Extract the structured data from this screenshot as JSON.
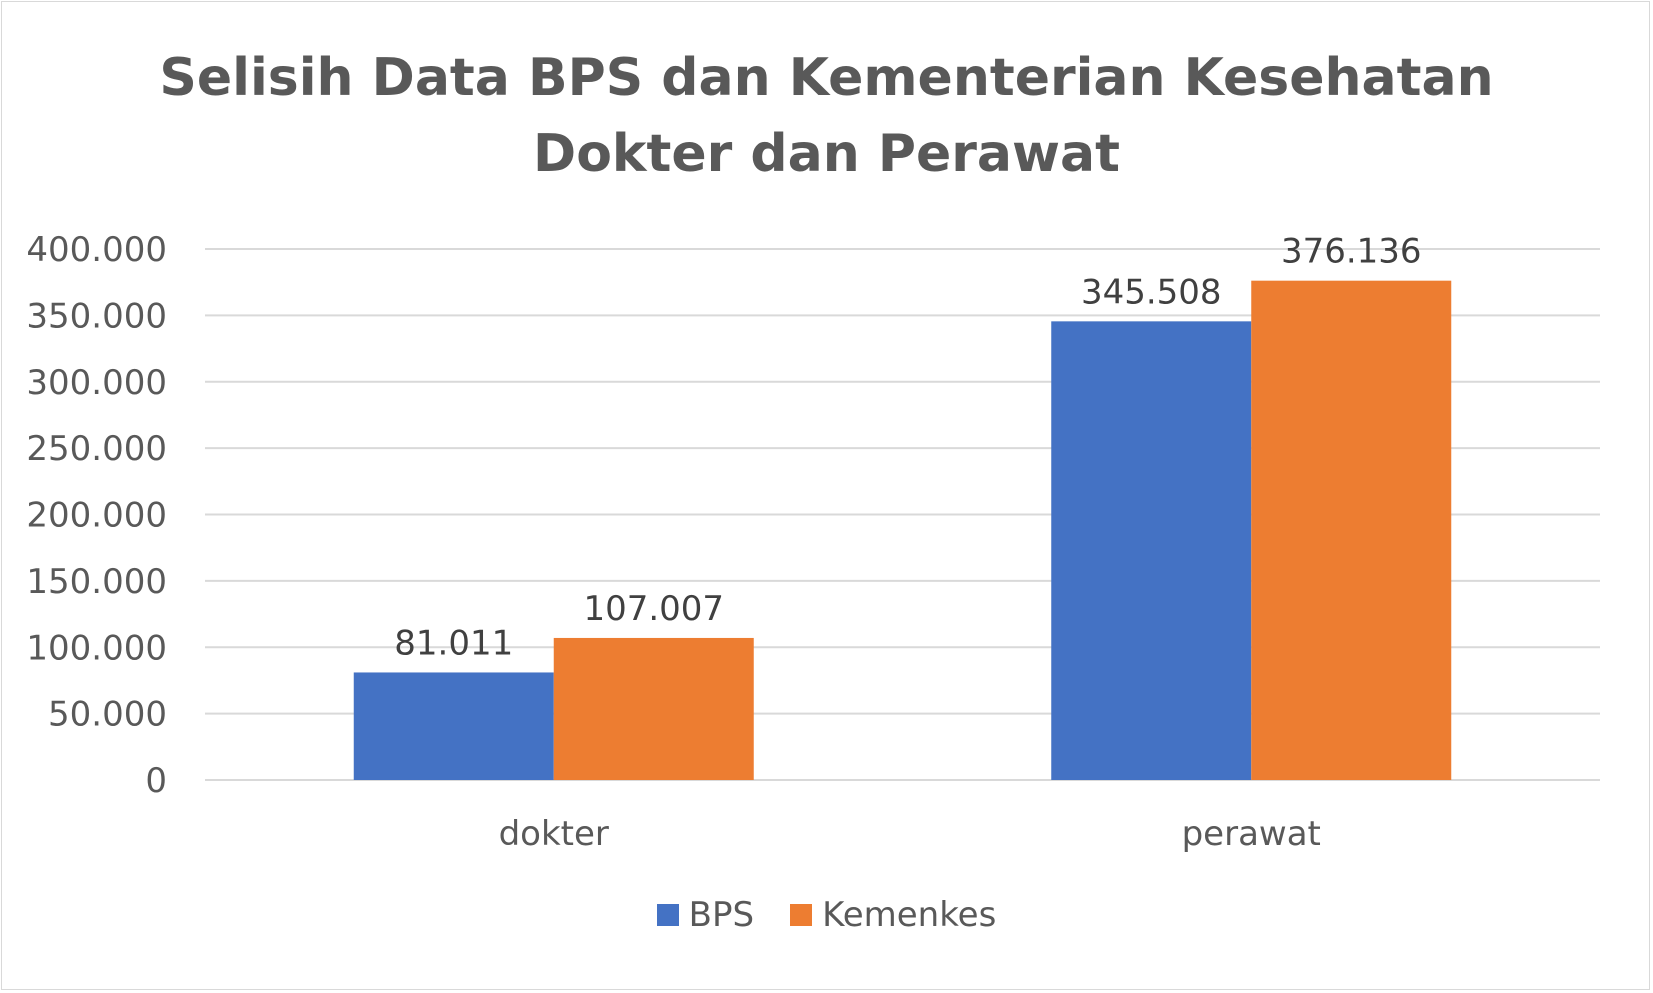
{
  "chart_data": {
    "type": "bar",
    "title_lines": [
      "Selisih Data BPS dan Kementerian Kesehatan",
      "Dokter dan Perawat"
    ],
    "categories": [
      "dokter",
      "perawat"
    ],
    "series": [
      {
        "name": "BPS",
        "color": "#4472c4",
        "values": [
          81011,
          345508
        ],
        "labels": [
          "81.011",
          "345.508"
        ]
      },
      {
        "name": "Kemenkes",
        "color": "#ed7d31",
        "values": [
          107007,
          376136
        ],
        "labels": [
          "107.007",
          "376.136"
        ]
      }
    ],
    "ylim": [
      0,
      400000
    ],
    "yticks": [
      0,
      50000,
      100000,
      150000,
      200000,
      250000,
      300000,
      350000,
      400000
    ],
    "ytick_labels": [
      "0",
      "50.000",
      "100.000",
      "150.000",
      "200.000",
      "250.000",
      "300.000",
      "350.000",
      "400.000"
    ],
    "grid": true,
    "gridline_color": "#d9d9d9",
    "legend_position": "bottom"
  }
}
